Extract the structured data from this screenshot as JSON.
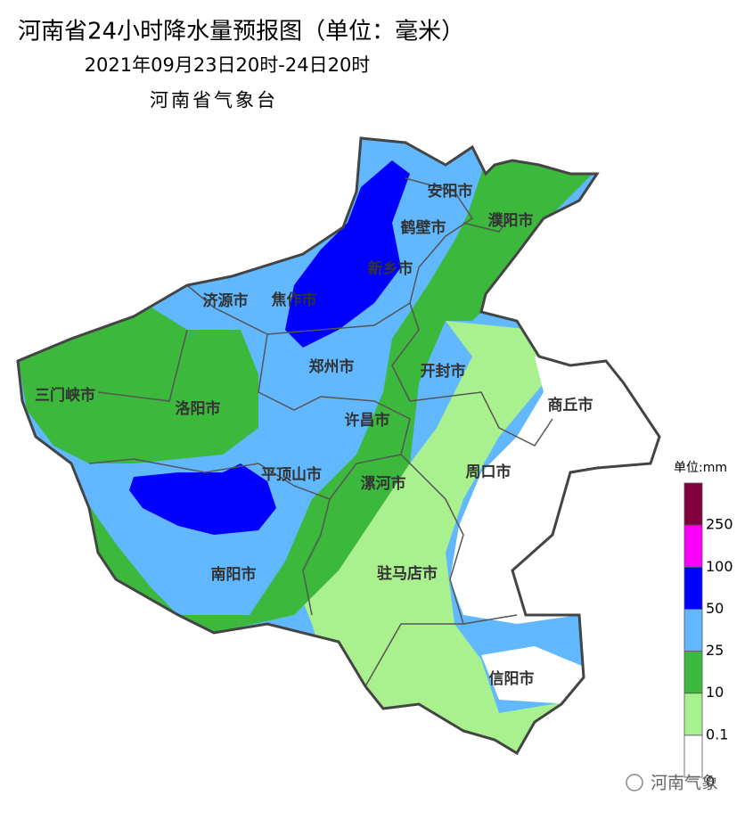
{
  "header": {
    "title": "河南省24小时降水量预报图（单位：毫米）",
    "period": "2021年09月23日20时-24日20时",
    "issuer": "河南省气象台"
  },
  "cities": [
    "安阳市",
    "濮阳市",
    "鹤壁市",
    "新乡市",
    "济源市",
    "焦作市",
    "郑州市",
    "开封市",
    "商丘市",
    "三门峡市",
    "洛阳市",
    "许昌市",
    "平顶山市",
    "漯河市",
    "周口市",
    "南阳市",
    "驻马店市",
    "信阳市"
  ],
  "legend": {
    "unit": "单位:mm",
    "levels": [
      {
        "value": 0,
        "color": "#ffffff"
      },
      {
        "value": 0.1,
        "color": "#a9f08e"
      },
      {
        "value": 10,
        "color": "#3cb93c"
      },
      {
        "value": 25,
        "color": "#61b8ff"
      },
      {
        "value": 50,
        "color": "#0000ff"
      },
      {
        "value": 100,
        "color": "#fa00fa"
      },
      {
        "value": 250,
        "color": "#800040"
      }
    ]
  },
  "watermark": "河南气象"
}
